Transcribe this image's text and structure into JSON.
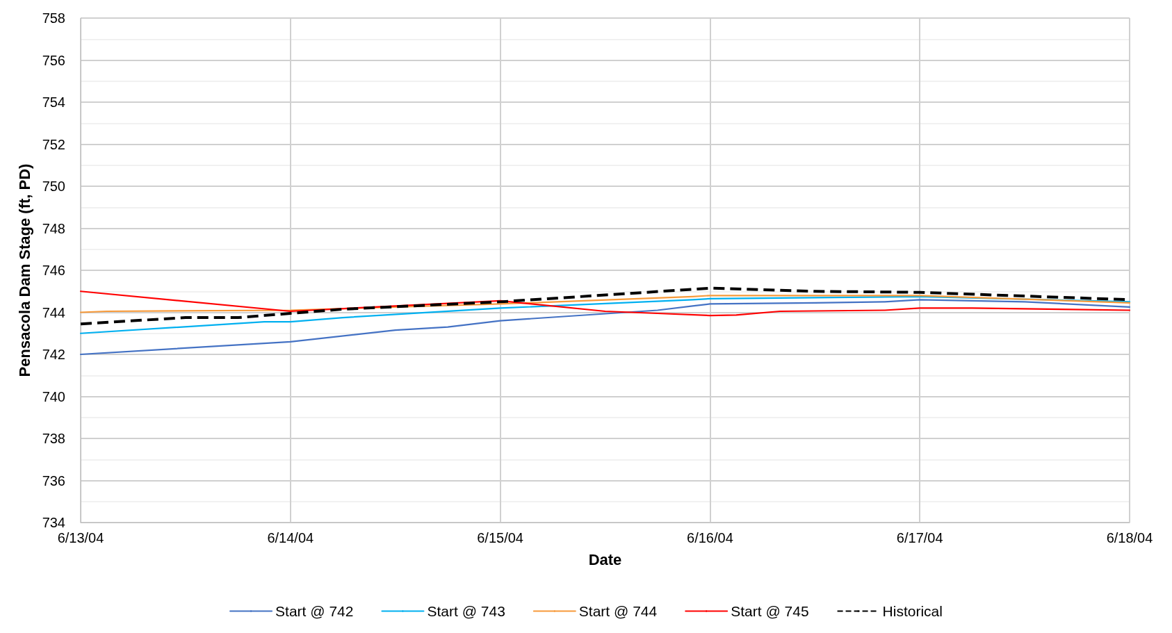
{
  "chart_data": {
    "type": "line",
    "xlabel": "Date",
    "ylabel": "Pensacola Dam Stage (ft, PD)",
    "ylim": [
      734,
      758
    ],
    "yticks": [
      734,
      736,
      738,
      740,
      742,
      744,
      746,
      748,
      750,
      752,
      754,
      756,
      758
    ],
    "xlim": [
      "--06-13T00:00",
      "--06-18T00:00"
    ],
    "xticks": [
      {
        "value": "--06-13T00:00",
        "label": "6/13/04"
      },
      {
        "value": "--06-14T00:00",
        "label": "6/14/04"
      },
      {
        "value": "--06-15T00:00",
        "label": "6/15/04"
      },
      {
        "value": "--06-16T00:00",
        "label": "6/16/04"
      },
      {
        "value": "--06-17T00:00",
        "label": "6/17/04"
      },
      {
        "value": "--06-18T00:00",
        "label": "6/18/04"
      }
    ],
    "grid": true,
    "legend": "bottom",
    "marker": "none",
    "series": [
      {
        "name": "Start @ 742",
        "color": "#4472c4",
        "x": [
          "--06-13T00:00",
          "--06-14T00:00",
          "--06-14T12:00",
          "--06-14T18:00",
          "--06-15T00:00",
          "--06-15T18:00",
          "--06-15T22:00",
          "--06-16T00:00",
          "--06-16T12:00",
          "--06-16T20:00",
          "--06-17T00:00",
          "--06-17T12:00",
          "--06-18T00:00"
        ],
        "values": [
          742.0,
          742.6,
          743.15,
          743.3,
          743.6,
          744.1,
          744.3,
          744.4,
          744.45,
          744.5,
          744.6,
          744.5,
          744.25
        ]
      },
      {
        "name": "Start @ 743",
        "color": "#00b0f0",
        "x": [
          "--06-13T00:00",
          "--06-13T21:00",
          "--06-14T00:00",
          "--06-14T06:00",
          "--06-15T00:00",
          "--06-15T22:00",
          "--06-16T00:00",
          "--06-17T00:00",
          "--06-18T00:00"
        ],
        "values": [
          743.0,
          743.55,
          743.55,
          743.75,
          744.2,
          744.6,
          744.65,
          744.75,
          744.5
        ]
      },
      {
        "name": "Start @ 744",
        "color": "#f79a3a",
        "x": [
          "--06-13T00:00",
          "--06-13T03:00",
          "--06-14T00:00",
          "--06-15T00:00",
          "--06-15T22:00",
          "--06-16T00:00",
          "--06-17T00:00",
          "--06-18T00:00"
        ],
        "values": [
          744.0,
          744.05,
          744.1,
          744.4,
          744.75,
          744.8,
          744.8,
          744.45
        ]
      },
      {
        "name": "Start @ 745",
        "color": "#ff0000",
        "x": [
          "--06-13T00:00",
          "--06-14T00:00",
          "--06-15T00:00",
          "--06-15T12:00",
          "--06-15T18:00",
          "--06-16T00:00",
          "--06-16T03:00",
          "--06-16T08:00",
          "--06-16T20:00",
          "--06-17T00:00",
          "--06-17T06:00",
          "--06-18T00:00"
        ],
        "values": [
          745.0,
          744.05,
          744.55,
          744.05,
          743.95,
          743.85,
          743.87,
          744.05,
          744.1,
          744.2,
          744.2,
          744.1
        ]
      },
      {
        "name": "Historical",
        "color": "#000000",
        "line_style": "dashed",
        "x": [
          "--06-13T00:00",
          "--06-13T12:00",
          "--06-13T18:00",
          "--06-14T00:00",
          "--06-14T06:00",
          "--06-15T00:00",
          "--06-16T00:00",
          "--06-16T12:00",
          "--06-17T00:00",
          "--06-18T00:00"
        ],
        "values": [
          743.45,
          743.75,
          743.75,
          743.95,
          744.15,
          744.5,
          745.15,
          745.0,
          744.95,
          744.6
        ]
      }
    ]
  }
}
